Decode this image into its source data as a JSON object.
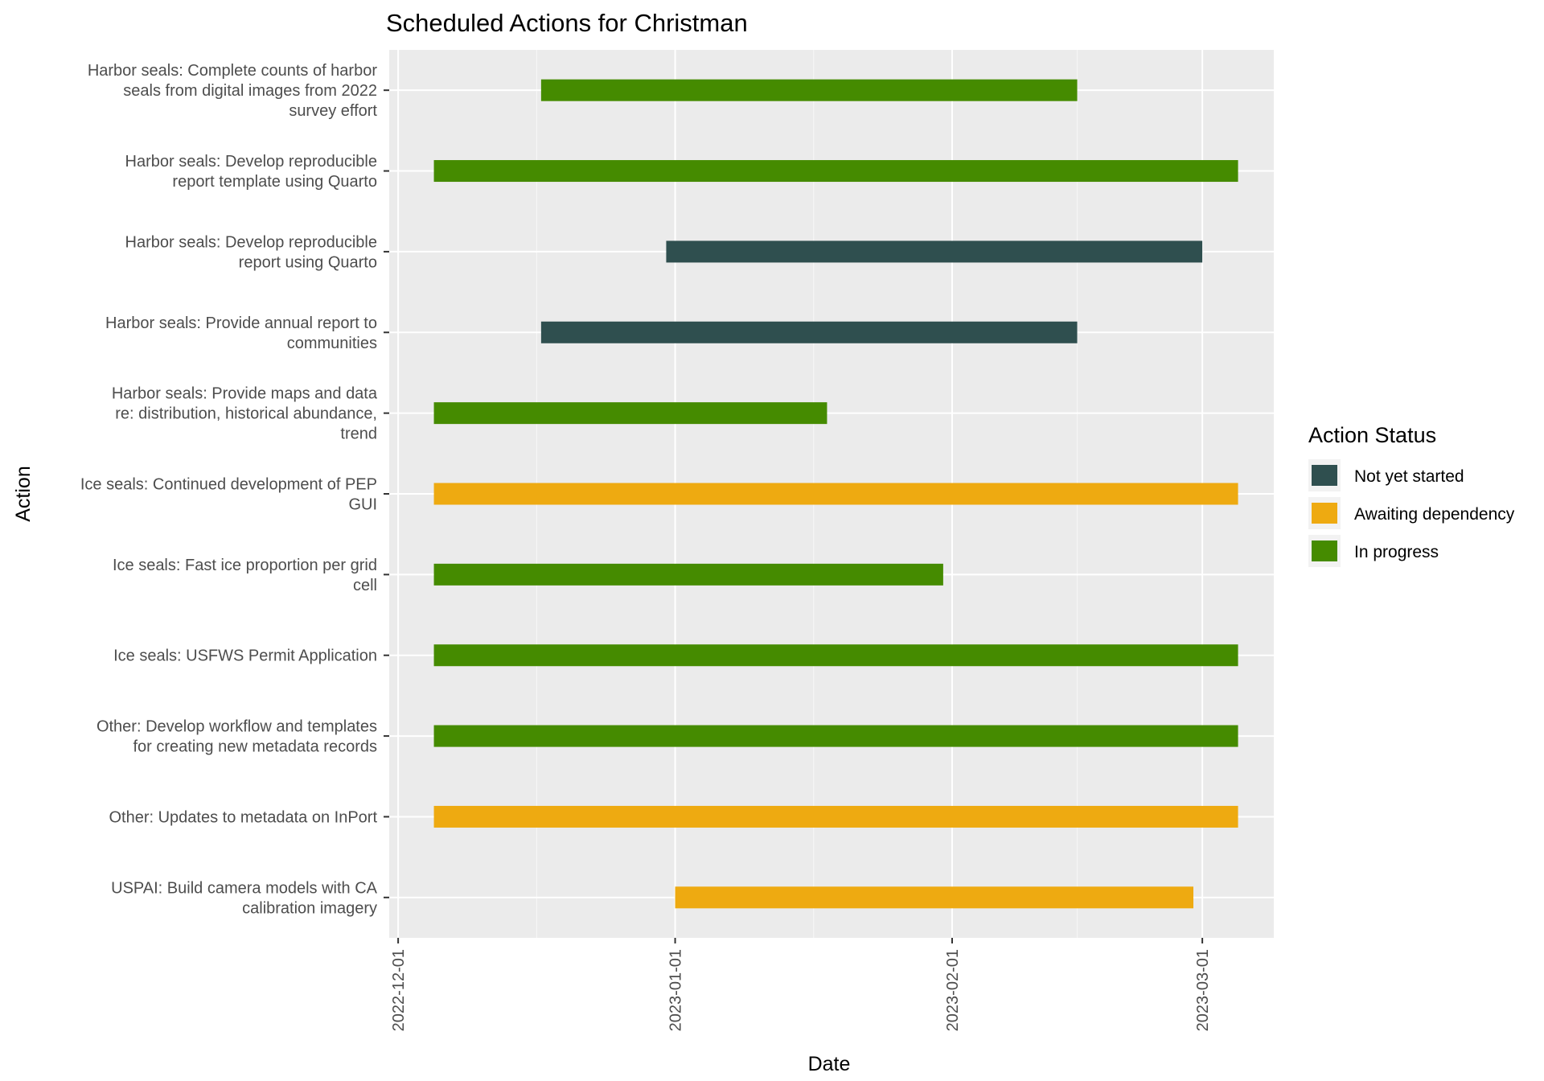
{
  "chart_data": {
    "type": "gantt",
    "title": "Scheduled Actions for Christman",
    "xlabel": "Date",
    "ylabel": "Action",
    "x_type": "date",
    "xlim": [
      "2022-11-30",
      "2023-03-09"
    ],
    "x_ticks": [
      "2022-12-01",
      "2023-01-01",
      "2023-02-01",
      "2023-03-01"
    ],
    "grid": true,
    "legend": {
      "title": "Action Status",
      "position": "right",
      "entries": [
        {
          "label": "Not yet started",
          "color": "#2F4F4F"
        },
        {
          "label": "Awaiting dependency",
          "color": "#EEAA11"
        },
        {
          "label": "In progress",
          "color": "#458B00"
        }
      ]
    },
    "tasks": [
      {
        "label_lines": [
          "Harbor seals: Complete counts of harbor",
          "seals from digital images from 2022",
          "survey effort"
        ],
        "start": "2022-12-17",
        "end": "2023-02-15",
        "status": "In progress"
      },
      {
        "label_lines": [
          "Harbor seals: Develop reproducible",
          "report template using Quarto"
        ],
        "start": "2022-12-05",
        "end": "2023-03-05",
        "status": "In progress"
      },
      {
        "label_lines": [
          "Harbor seals: Develop reproducible",
          "report using Quarto"
        ],
        "start": "2022-12-31",
        "end": "2023-03-01",
        "status": "Not yet started"
      },
      {
        "label_lines": [
          "Harbor seals: Provide annual report to",
          "communities"
        ],
        "start": "2022-12-17",
        "end": "2023-02-15",
        "status": "Not yet started"
      },
      {
        "label_lines": [
          "Harbor seals: Provide maps and data",
          "re: distribution, historical abundance,",
          "trend"
        ],
        "start": "2022-12-05",
        "end": "2023-01-18",
        "status": "In progress"
      },
      {
        "label_lines": [
          "Ice seals: Continued development of PEP",
          "GUI"
        ],
        "start": "2022-12-05",
        "end": "2023-03-05",
        "status": "Awaiting dependency"
      },
      {
        "label_lines": [
          "Ice seals: Fast ice proportion per grid",
          "cell"
        ],
        "start": "2022-12-05",
        "end": "2023-01-31",
        "status": "In progress"
      },
      {
        "label_lines": [
          "Ice seals: USFWS Permit Application"
        ],
        "start": "2022-12-05",
        "end": "2023-03-05",
        "status": "In progress"
      },
      {
        "label_lines": [
          "Other: Develop workflow and templates",
          "for creating new metadata records"
        ],
        "start": "2022-12-05",
        "end": "2023-03-05",
        "status": "In progress"
      },
      {
        "label_lines": [
          "Other: Updates to metadata on InPort"
        ],
        "start": "2022-12-05",
        "end": "2023-03-05",
        "status": "Awaiting dependency"
      },
      {
        "label_lines": [
          "USPAI: Build camera models with CA",
          "calibration imagery"
        ],
        "start": "2023-01-01",
        "end": "2023-02-28",
        "status": "Awaiting dependency"
      }
    ]
  }
}
